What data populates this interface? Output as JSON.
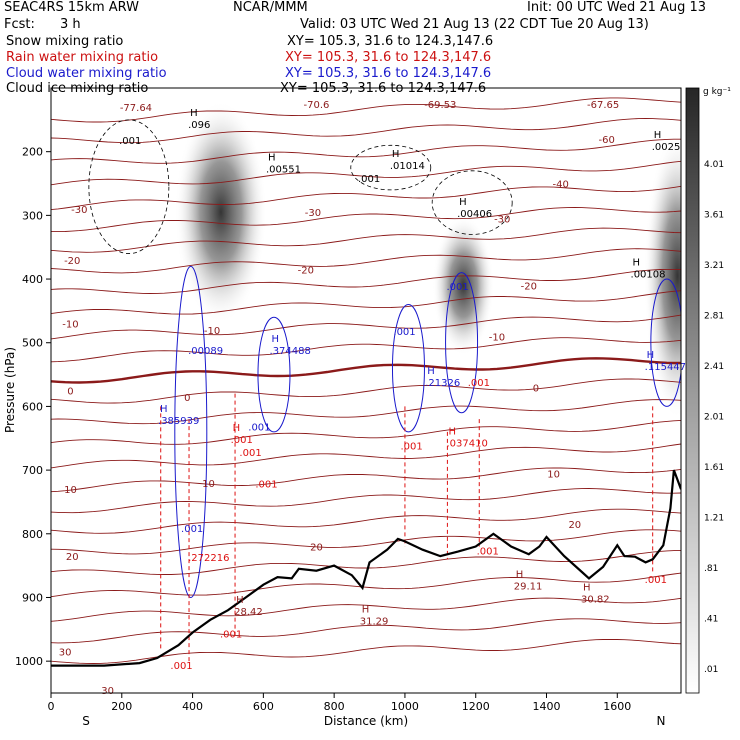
{
  "header": {
    "model": "SEAC4RS 15km ARW",
    "org": "NCAR/MMM",
    "init": "Init: 00 UTC Wed 21 Aug 13",
    "fcst_label": "Fcst:",
    "fcst_value": "3 h",
    "valid": "Valid: 03 UTC Wed 21 Aug 13 (22 CDT Tue 20 Aug 13)",
    "fields": [
      {
        "name": "Snow mixing ratio",
        "color": "#000000",
        "xy": "XY= 105.3, 31.6 to 124.3,147.6"
      },
      {
        "name": "Rain water mixing ratio",
        "color": "#cc1111",
        "xy": "XY= 105.3, 31.6 to 124.3,147.6"
      },
      {
        "name": "Cloud water mixing ratio",
        "color": "#1a1acc",
        "xy": "XY= 105.3, 31.6 to 124.3,147.6"
      },
      {
        "name": "Cloud ice mixing ratio",
        "color": "#000000",
        "xy": "XY= 105.3, 31.6 to 124.3,147.6"
      }
    ]
  },
  "colors": {
    "temperature": "#8b1a1a",
    "rain": "#dd1111",
    "cloud_water": "#1a1acc",
    "cloud_ice": "#000000",
    "terrain": "#000000"
  },
  "chart_data": {
    "type": "heatmap",
    "xlabel": "Distance (km)",
    "ylabel": "Pressure (hPa)",
    "xlim": [
      0,
      1780
    ],
    "ylim": [
      1050,
      100
    ],
    "x_ticks": [
      0,
      200,
      400,
      600,
      800,
      1000,
      1200,
      1400,
      1600
    ],
    "y_ticks": [
      200,
      300,
      400,
      500,
      600,
      700,
      800,
      900,
      1000
    ],
    "endpoint_left": "S",
    "endpoint_right": "N",
    "colorbar": {
      "unit": "g kg⁻¹",
      "ticks": [
        "4.01",
        "3.61",
        "3.21",
        "2.81",
        "2.41",
        "2.01",
        "1.61",
        "1.21",
        ".81",
        ".41",
        ".01"
      ]
    },
    "snow_plumes": [
      {
        "center_x": 480,
        "top_p": 120,
        "bottom_p": 470,
        "max": 4.0
      },
      {
        "center_x": 1165,
        "top_p": 300,
        "bottom_p": 520,
        "max": 2.3
      },
      {
        "center_x": 1770,
        "top_p": 170,
        "bottom_p": 620,
        "max": 2.6
      }
    ],
    "temperature_contours": [
      {
        "label": "-70.6",
        "x": 750,
        "p": 125
      },
      {
        "label": "-69.53",
        "x": 1100,
        "p": 125
      },
      {
        "label": "-77.64",
        "x": 240,
        "p": 130
      },
      {
        "label": "-67.65",
        "x": 1560,
        "p": 125
      },
      {
        "label": "-60",
        "x": 1570,
        "p": 180
      },
      {
        "label": "-40",
        "x": 1440,
        "p": 250
      },
      {
        "label": "-30",
        "x": 80,
        "p": 290
      },
      {
        "label": "-30",
        "x": 740,
        "p": 295
      },
      {
        "label": "-30",
        "x": 1275,
        "p": 305
      },
      {
        "label": "-20",
        "x": 60,
        "p": 370
      },
      {
        "label": "-20",
        "x": 720,
        "p": 385
      },
      {
        "label": "-20",
        "x": 1350,
        "p": 410
      },
      {
        "label": "-10",
        "x": 55,
        "p": 470
      },
      {
        "label": "-10",
        "x": 455,
        "p": 480
      },
      {
        "label": "-10",
        "x": 1260,
        "p": 490
      },
      {
        "label": "0",
        "x": 55,
        "p": 575
      },
      {
        "label": "0",
        "x": 385,
        "p": 585
      },
      {
        "label": "0",
        "x": 1370,
        "p": 570
      },
      {
        "label": "10",
        "x": 55,
        "p": 730
      },
      {
        "label": "10",
        "x": 445,
        "p": 720
      },
      {
        "label": "10",
        "x": 1420,
        "p": 705
      },
      {
        "label": "20",
        "x": 60,
        "p": 835
      },
      {
        "label": "20",
        "x": 750,
        "p": 820
      },
      {
        "label": "20",
        "x": 1480,
        "p": 785
      },
      {
        "label": "30",
        "x": 40,
        "p": 985
      },
      {
        "label": "30",
        "x": 160,
        "p": 1045
      }
    ],
    "extrema_labels": [
      {
        "kind": "H",
        "value": ".096",
        "x": 410,
        "p": 150,
        "color": "black"
      },
      {
        "kind": "",
        "value": ".001",
        "x": 215,
        "p": 175,
        "color": "black"
      },
      {
        "kind": "H",
        "value": ".00551",
        "x": 630,
        "p": 220,
        "color": "black"
      },
      {
        "kind": "H",
        "value": ".01014",
        "x": 980,
        "p": 215,
        "color": "black"
      },
      {
        "kind": "",
        "value": ".001",
        "x": 890,
        "p": 235,
        "color": "black"
      },
      {
        "kind": "H",
        "value": ".00406",
        "x": 1170,
        "p": 290,
        "color": "black"
      },
      {
        "kind": "H",
        "value": ".00108",
        "x": 1660,
        "p": 385,
        "color": "black"
      },
      {
        "kind": "H",
        "value": ".0025",
        "x": 1720,
        "p": 185,
        "color": "black"
      },
      {
        "kind": "",
        "value": ".001",
        "x": 1140,
        "p": 405,
        "color": "blue"
      },
      {
        "kind": "",
        "value": ".001",
        "x": 990,
        "p": 475,
        "color": "blue"
      },
      {
        "kind": "",
        "value": ".00089",
        "x": 410,
        "p": 505,
        "color": "blue"
      },
      {
        "kind": "H",
        "value": ".374488",
        "x": 640,
        "p": 505,
        "color": "blue"
      },
      {
        "kind": "H",
        "value": ".21326",
        "x": 1080,
        "p": 555,
        "color": "blue"
      },
      {
        "kind": "H",
        "value": ".115447",
        "x": 1700,
        "p": 530,
        "color": "blue"
      },
      {
        "kind": "H",
        "value": ".385939",
        "x": 325,
        "p": 615,
        "color": "blue"
      },
      {
        "kind": "",
        "value": ".001",
        "x": 580,
        "p": 625,
        "color": "blue"
      },
      {
        "kind": "",
        "value": ".001",
        "x": 390,
        "p": 785,
        "color": "blue"
      },
      {
        "kind": "",
        "value": ".001",
        "x": 1200,
        "p": 555,
        "color": "red"
      },
      {
        "kind": "",
        "value": ".001",
        "x": 555,
        "p": 665,
        "color": "red"
      },
      {
        "kind": "H",
        "value": ".001",
        "x": 530,
        "p": 645,
        "color": "red"
      },
      {
        "kind": "",
        "value": ".001",
        "x": 1010,
        "p": 655,
        "color": "red"
      },
      {
        "kind": "H",
        "value": ".037410",
        "x": 1140,
        "p": 650,
        "color": "red"
      },
      {
        "kind": "",
        "value": ".001",
        "x": 600,
        "p": 715,
        "color": "red"
      },
      {
        "kind": "",
        "value": ".001",
        "x": 1225,
        "p": 820,
        "color": "red"
      },
      {
        "kind": "",
        "value": ".001",
        "x": 1700,
        "p": 865,
        "color": "red"
      },
      {
        "kind": "",
        "value": ".272216",
        "x": 410,
        "p": 830,
        "color": "red"
      },
      {
        "kind": "",
        "value": ".001",
        "x": 500,
        "p": 950,
        "color": "red"
      },
      {
        "kind": "",
        "value": ".001",
        "x": 360,
        "p": 1000,
        "color": "red"
      },
      {
        "kind": "H",
        "value": "28.42",
        "x": 540,
        "p": 915,
        "color": "darkred"
      },
      {
        "kind": "H",
        "value": "31.29",
        "x": 895,
        "p": 930,
        "color": "darkred"
      },
      {
        "kind": "H",
        "value": "29.11",
        "x": 1330,
        "p": 875,
        "color": "darkred"
      },
      {
        "kind": "H",
        "value": "30.82",
        "x": 1520,
        "p": 895,
        "color": "darkred"
      }
    ],
    "terrain_pressure": {
      "x": [
        0,
        150,
        250,
        300,
        330,
        360,
        400,
        450,
        500,
        550,
        600,
        640,
        680,
        700,
        750,
        800,
        850,
        880,
        900,
        950,
        980,
        1000,
        1050,
        1100,
        1150,
        1200,
        1250,
        1280,
        1300,
        1350,
        1380,
        1400,
        1450,
        1500,
        1520,
        1560,
        1600,
        1620,
        1650,
        1680,
        1700,
        1730,
        1750,
        1760,
        1780
      ],
      "p": [
        1007,
        1007,
        1003,
        995,
        985,
        975,
        955,
        935,
        920,
        900,
        880,
        868,
        870,
        855,
        858,
        850,
        865,
        885,
        845,
        825,
        808,
        812,
        825,
        835,
        828,
        820,
        800,
        812,
        820,
        832,
        820,
        805,
        835,
        860,
        870,
        852,
        818,
        835,
        836,
        845,
        840,
        818,
        760,
        700,
        730
      ]
    }
  }
}
